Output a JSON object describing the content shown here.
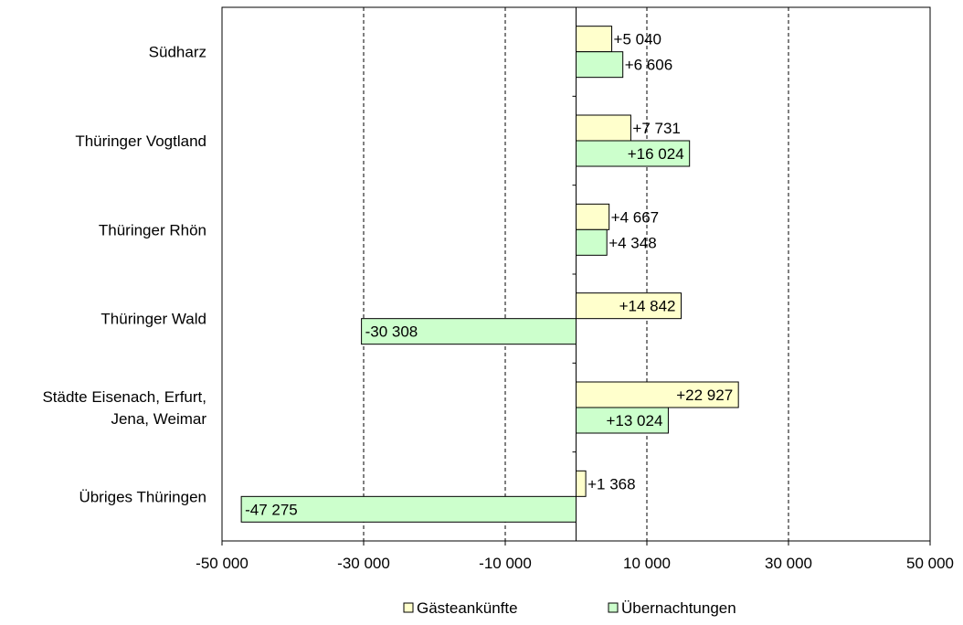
{
  "chart_data": {
    "type": "bar",
    "orientation": "horizontal",
    "categories": [
      [
        "Südharz"
      ],
      [
        "Thüringer Vogtland"
      ],
      [
        "Thüringer Rhön"
      ],
      [
        "Thüringer Wald"
      ],
      [
        "Städte Eisenach, Erfurt,",
        "Jena, Weimar"
      ],
      [
        "Übriges Thüringen"
      ]
    ],
    "series": [
      {
        "name": "Gästeankünfte",
        "color": "#ffffcc",
        "values": [
          5040,
          7731,
          4667,
          14842,
          22927,
          1368
        ],
        "labels": [
          "+5 040",
          "+7 731",
          "+4 667",
          "+14 842",
          "+22 927",
          "+1 368"
        ]
      },
      {
        "name": "Übernachtungen",
        "color": "#ccffcc",
        "values": [
          6606,
          16024,
          4348,
          -30308,
          13024,
          -47275
        ],
        "labels": [
          "+6 606",
          "+16 024",
          "+4 348",
          "-30 308",
          "+13 024",
          "-47 275"
        ]
      }
    ],
    "xlim": [
      -50000,
      50000
    ],
    "xticks": [
      -50000,
      -30000,
      -10000,
      10000,
      30000,
      50000
    ],
    "xtick_labels": [
      "-50 000",
      "-30 000",
      "-10 000",
      "10 000",
      "30 000",
      "50 000"
    ],
    "grid": "vertical dashed",
    "legend_position": "bottom"
  }
}
